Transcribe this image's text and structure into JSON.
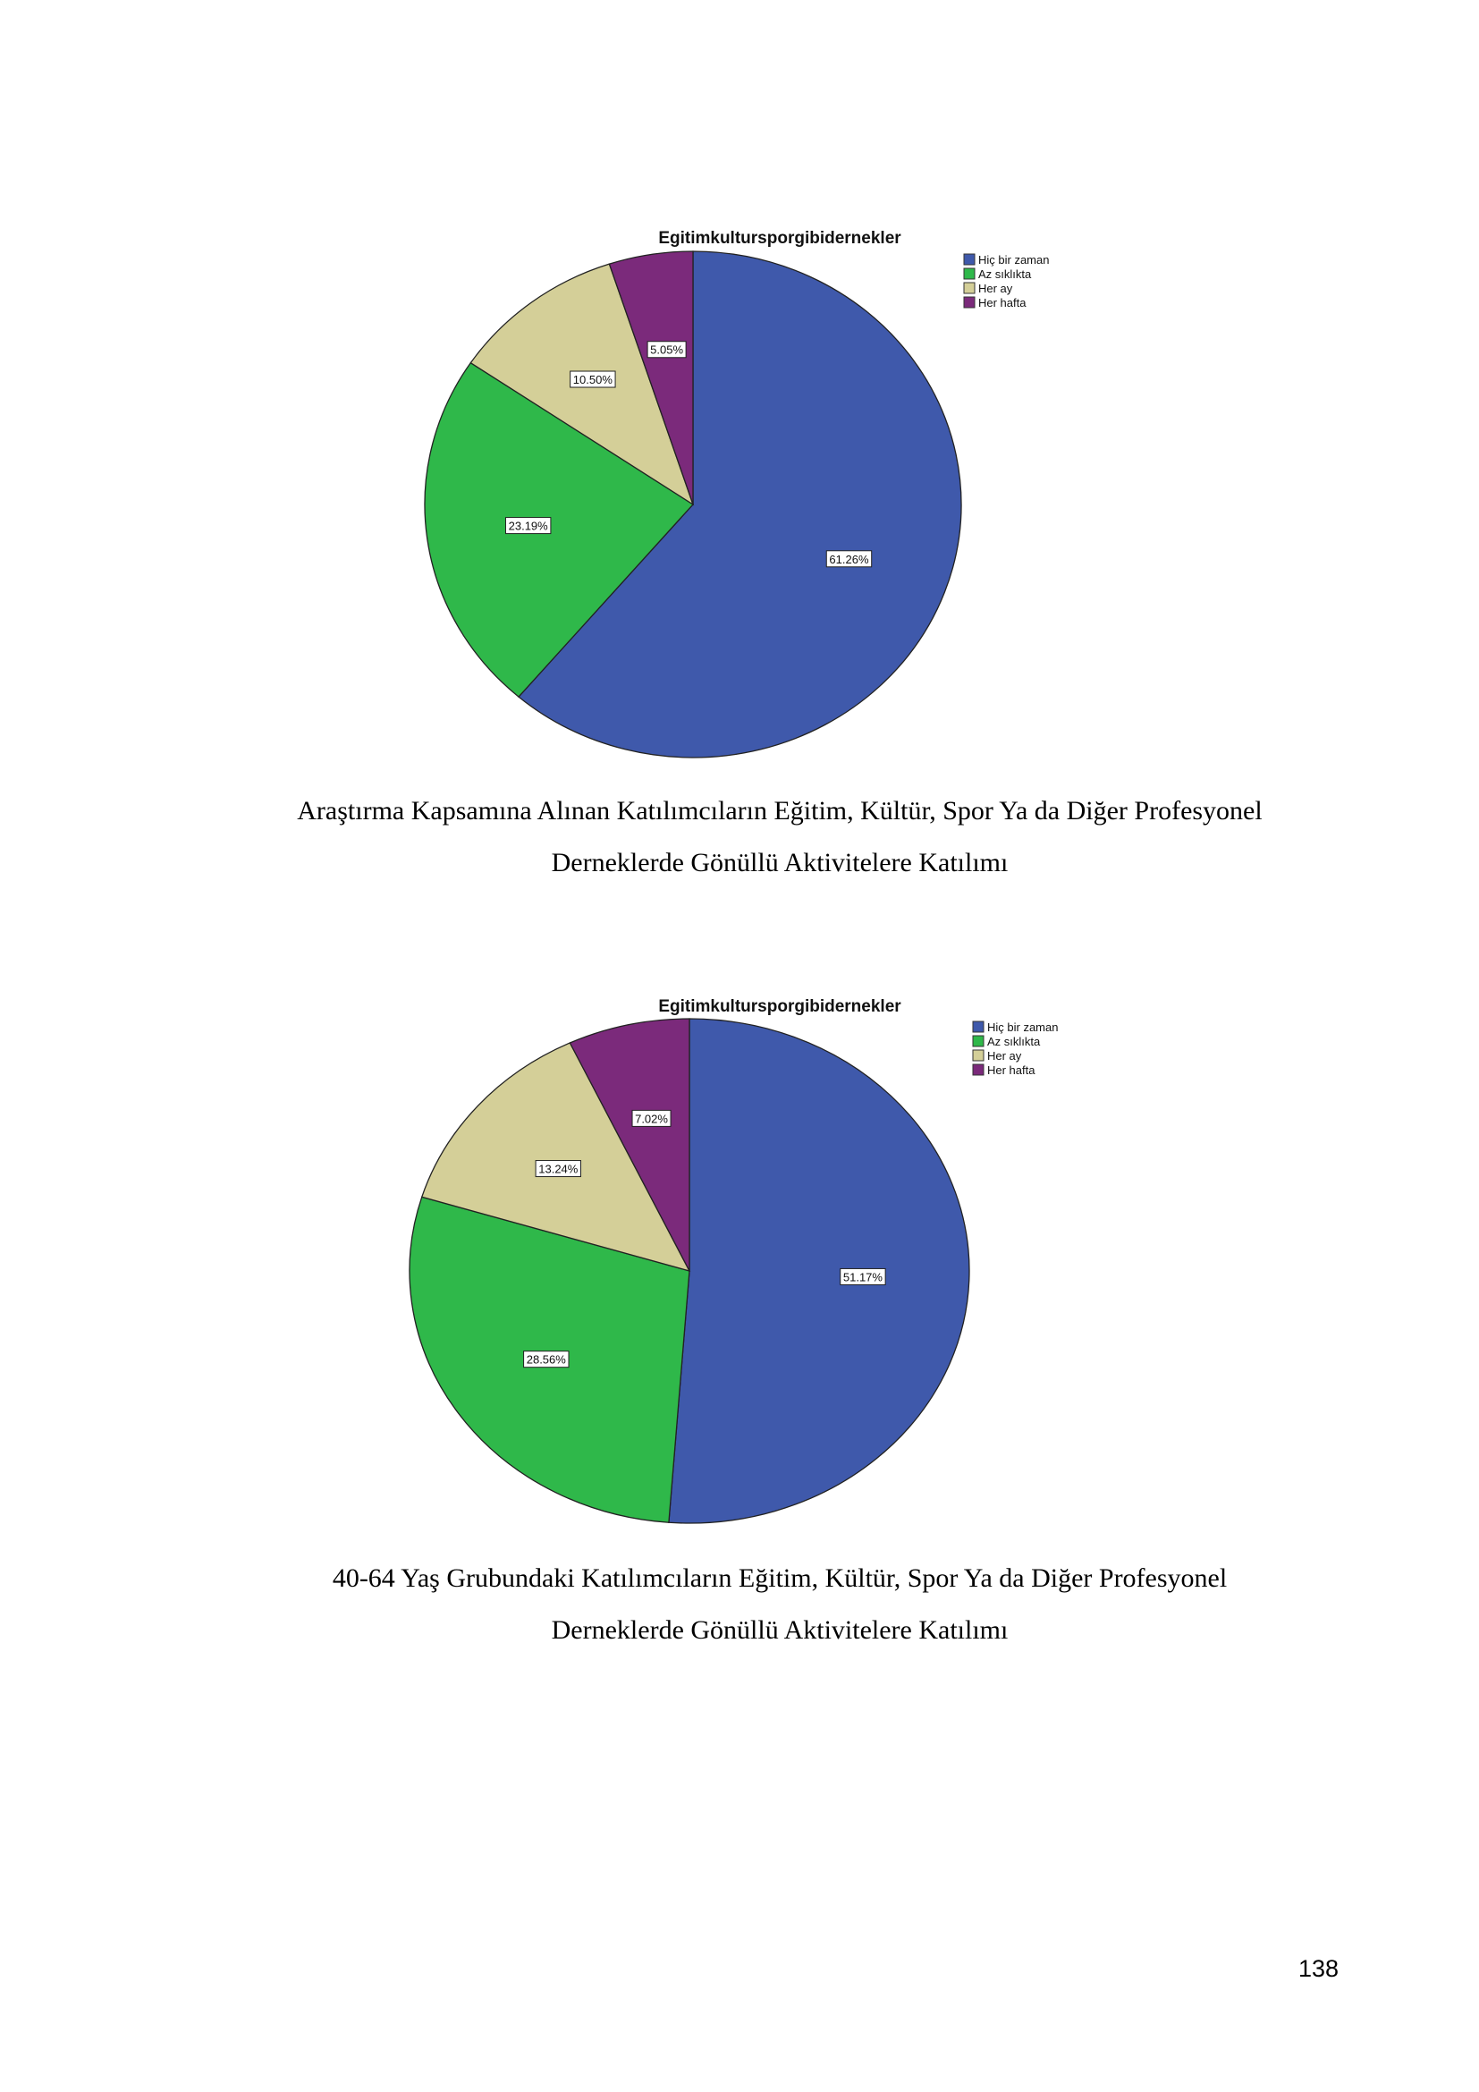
{
  "chart_data": [
    {
      "type": "pie",
      "title": "Egitimkultursporgibidernekler",
      "categories": [
        "Hiç bir zaman",
        "Az sıklıkta",
        "Her ay",
        "Her hafta"
      ],
      "values": [
        61.26,
        23.19,
        10.5,
        5.05
      ],
      "labels": [
        "61.26%",
        "23.19%",
        "10.50%",
        "5.05%"
      ],
      "colors": [
        "#3f59ab",
        "#2fb84a",
        "#d4cf98",
        "#7b2a7b"
      ],
      "legend": "top-right",
      "caption_lines": [
        "Araştırma Kapsamına Alınan Katılımcıların Eğitim, Kültür, Spor Ya da Diğer Profesyonel",
        "Derneklerde Gönüllü Aktivitelere Katılımı"
      ]
    },
    {
      "type": "pie",
      "title": "Egitimkultursporgibidernekler",
      "categories": [
        "Hiç bir zaman",
        "Az sıklıkta",
        "Her ay",
        "Her hafta"
      ],
      "values": [
        51.17,
        28.56,
        13.24,
        7.02
      ],
      "labels": [
        "51.17%",
        "28.56%",
        "13.24%",
        "7.02%"
      ],
      "colors": [
        "#3f59ab",
        "#2fb84a",
        "#d4cf98",
        "#7b2a7b"
      ],
      "legend": "top-right",
      "caption_lines": [
        "40-64 Yaş Grubundaki Katılımcıların Eğitim, Kültür, Spor Ya da Diğer Profesyonel",
        "Derneklerde Gönüllü Aktivitelere Katılımı"
      ]
    }
  ],
  "page_number": "138"
}
